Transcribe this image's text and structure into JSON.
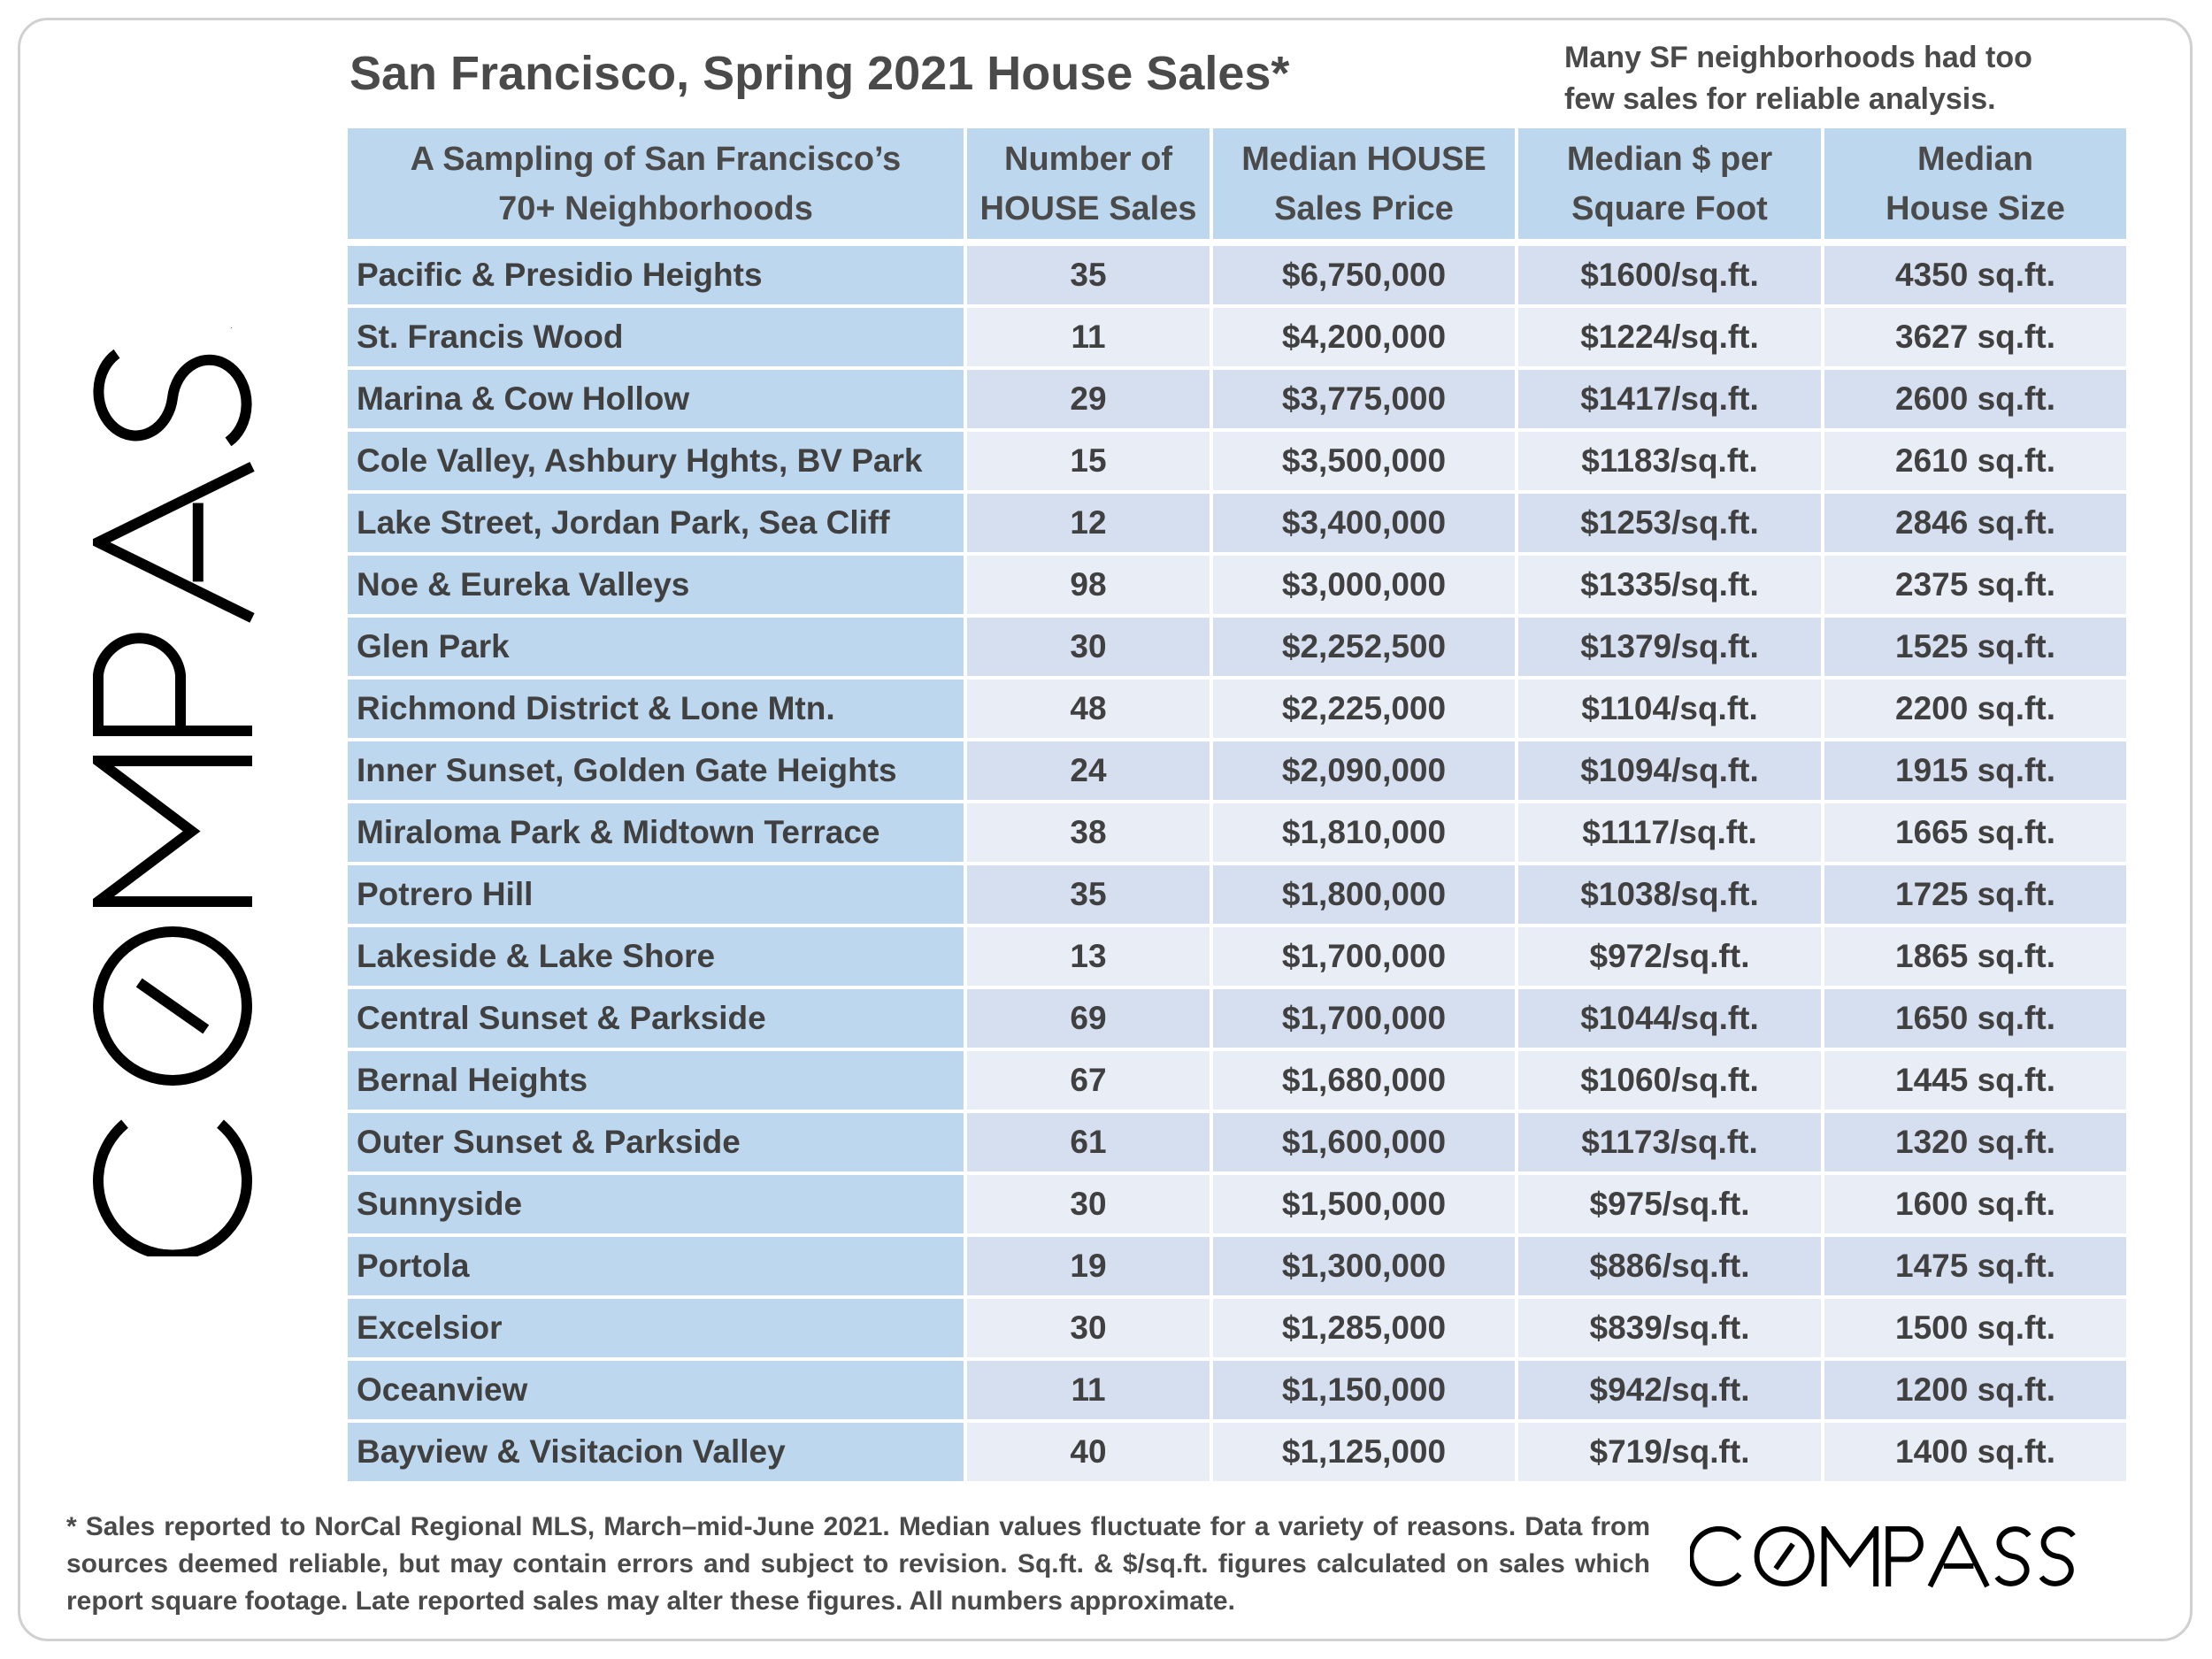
{
  "title": "San Francisco, Spring 2021 House Sales*",
  "note": "Many SF neighborhoods had too few sales for reliable analysis.",
  "brand": {
    "name": "COMPASS",
    "color": "#000000"
  },
  "colors": {
    "header_bg": "#bdd7ee",
    "name_col_bg": "#bdd7ee",
    "row_odd_bg": "#d6dfef",
    "row_even_bg": "#e9edf6"
  },
  "footnote": "* Sales reported to NorCal Regional MLS, March–mid-June 2021. Median values fluctuate for a variety of reasons. Data from sources deemed reliable, but may contain errors and subject to revision. Sq.ft. & $/sq.ft. figures calculated on sales which report square footage. Late reported sales may alter these figures. All numbers approximate.",
  "chart_data": {
    "type": "table",
    "title": "San Francisco, Spring 2021 House Sales*",
    "columns": [
      [
        "A Sampling of San Francisco’s",
        "70+ Neighborhoods"
      ],
      [
        "Number of",
        "HOUSE Sales"
      ],
      [
        "Median HOUSE",
        "Sales Price"
      ],
      [
        "Median $ per",
        "Square Foot"
      ],
      [
        "Median",
        "House Size"
      ]
    ],
    "rows": [
      [
        "Pacific & Presidio Heights",
        "35",
        "$6,750,000",
        "$1600/sq.ft.",
        "4350 sq.ft."
      ],
      [
        "St. Francis Wood",
        "11",
        "$4,200,000",
        "$1224/sq.ft.",
        "3627 sq.ft."
      ],
      [
        "Marina & Cow Hollow",
        "29",
        "$3,775,000",
        "$1417/sq.ft.",
        "2600 sq.ft."
      ],
      [
        "Cole Valley, Ashbury Hghts, BV Park",
        "15",
        "$3,500,000",
        "$1183/sq.ft.",
        "2610 sq.ft."
      ],
      [
        "Lake Street, Jordan Park, Sea Cliff",
        "12",
        "$3,400,000",
        "$1253/sq.ft.",
        "2846 sq.ft."
      ],
      [
        "Noe & Eureka Valleys",
        "98",
        "$3,000,000",
        "$1335/sq.ft.",
        "2375 sq.ft."
      ],
      [
        "Glen Park",
        "30",
        "$2,252,500",
        "$1379/sq.ft.",
        "1525 sq.ft."
      ],
      [
        "Richmond District & Lone Mtn.",
        "48",
        "$2,225,000",
        "$1104/sq.ft.",
        "2200 sq.ft."
      ],
      [
        "Inner Sunset, Golden Gate Heights",
        "24",
        "$2,090,000",
        "$1094/sq.ft.",
        "1915 sq.ft."
      ],
      [
        "Miraloma Park & Midtown Terrace",
        "38",
        "$1,810,000",
        "$1117/sq.ft.",
        "1665 sq.ft."
      ],
      [
        "Potrero Hill",
        "35",
        "$1,800,000",
        "$1038/sq.ft.",
        "1725 sq.ft."
      ],
      [
        "Lakeside & Lake Shore",
        "13",
        "$1,700,000",
        "$972/sq.ft.",
        "1865 sq.ft."
      ],
      [
        "Central Sunset & Parkside",
        "69",
        "$1,700,000",
        "$1044/sq.ft.",
        "1650 sq.ft."
      ],
      [
        "Bernal Heights",
        "67",
        "$1,680,000",
        "$1060/sq.ft.",
        "1445 sq.ft."
      ],
      [
        "Outer Sunset & Parkside",
        "61",
        "$1,600,000",
        "$1173/sq.ft.",
        "1320 sq.ft."
      ],
      [
        "Sunnyside",
        "30",
        "$1,500,000",
        "$975/sq.ft.",
        "1600 sq.ft."
      ],
      [
        "Portola",
        "19",
        "$1,300,000",
        "$886/sq.ft.",
        "1475 sq.ft."
      ],
      [
        "Excelsior",
        "30",
        "$1,285,000",
        "$839/sq.ft.",
        "1500 sq.ft."
      ],
      [
        "Oceanview",
        "11",
        "$1,150,000",
        "$942/sq.ft.",
        "1200 sq.ft."
      ],
      [
        "Bayview & Visitacion Valley",
        "40",
        "$1,125,000",
        "$719/sq.ft.",
        "1400 sq.ft."
      ]
    ]
  }
}
